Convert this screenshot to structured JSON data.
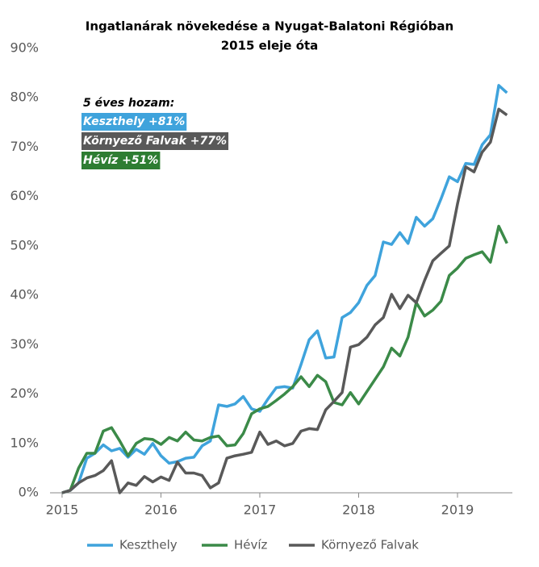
{
  "chart_data": {
    "type": "line",
    "title": "Ingatlanárak növekedése a Nyugat-Balatoni Régióban",
    "subtitle": "2015 eleje óta",
    "x": [
      2015,
      2015.083,
      2015.167,
      2015.25,
      2015.333,
      2015.417,
      2015.5,
      2015.583,
      2015.667,
      2015.75,
      2015.833,
      2015.917,
      2016,
      2016.083,
      2016.167,
      2016.25,
      2016.333,
      2016.417,
      2016.5,
      2016.583,
      2016.667,
      2016.75,
      2016.833,
      2016.917,
      2017,
      2017.083,
      2017.167,
      2017.25,
      2017.333,
      2017.417,
      2017.5,
      2017.583,
      2017.667,
      2017.75,
      2017.833,
      2017.917,
      2018,
      2018.083,
      2018.167,
      2018.25,
      2018.333,
      2018.417,
      2018.5,
      2018.583,
      2018.667,
      2018.75,
      2018.833,
      2018.917,
      2019,
      2019.083,
      2019.167,
      2019.25,
      2019.333,
      2019.417,
      2019.5
    ],
    "series": [
      {
        "name": "Keszthely",
        "color": "#3fa3dc",
        "values": [
          0,
          0.5,
          2,
          7,
          8,
          9.7,
          8.5,
          9,
          7.2,
          8.8,
          7.8,
          10,
          7.5,
          6,
          6.3,
          7,
          7.2,
          9.5,
          10.5,
          17.8,
          17.5,
          18,
          19.5,
          17,
          16.5,
          19,
          21.3,
          21.5,
          21.2,
          26,
          31,
          32.8,
          27.3,
          27.5,
          35.5,
          36.5,
          38.5,
          42,
          44,
          50.8,
          50.3,
          52.7,
          50.5,
          55.8,
          54,
          55.5,
          59.5,
          64,
          63,
          66.7,
          66.5,
          70.5,
          72.5,
          82.5,
          81
        ]
      },
      {
        "name": "Hévíz",
        "color": "#3b8a48",
        "values": [
          0,
          0.5,
          5,
          8,
          8,
          12.5,
          13.2,
          10.5,
          7.5,
          10,
          11,
          10.8,
          9.8,
          11.2,
          10.5,
          12.3,
          10.7,
          10.5,
          11.2,
          11.5,
          9.5,
          9.7,
          12,
          16,
          17,
          17.5,
          18.7,
          20,
          21.5,
          23.5,
          21.5,
          23.8,
          22.5,
          18.3,
          17.8,
          20.3,
          18,
          20.5,
          23,
          25.5,
          29.3,
          27.7,
          31.5,
          38.5,
          35.8,
          37,
          38.8,
          44,
          45.5,
          47.5,
          48.2,
          48.8,
          46.7,
          54,
          50.5
        ]
      },
      {
        "name": "Környező Falvak",
        "color": "#595959",
        "values": [
          0,
          0.5,
          2,
          3,
          3.5,
          4.5,
          6.5,
          0,
          2,
          1.5,
          3.3,
          2.2,
          3.2,
          2.5,
          6.2,
          4,
          4,
          3.5,
          1,
          2,
          7,
          7.5,
          7.8,
          8.2,
          12.3,
          9.8,
          10.5,
          9.5,
          10,
          12.5,
          13,
          12.8,
          16.8,
          18.5,
          20.3,
          29.5,
          30,
          31.5,
          34,
          35.5,
          40.2,
          37.3,
          40,
          38.5,
          43,
          47,
          48.5,
          50,
          58.5,
          66,
          65,
          69,
          71,
          77.7,
          76.5
        ]
      }
    ],
    "xlim": [
      2014.878,
      2019.555
    ],
    "xticks": [
      2015,
      2016,
      2017,
      2018,
      2019
    ],
    "ylim": [
      0,
      90
    ],
    "yticks": [
      {
        "value": 0,
        "label": "0%"
      },
      {
        "value": 10,
        "label": "10%"
      },
      {
        "value": 20,
        "label": "20%"
      },
      {
        "value": 30,
        "label": "30%"
      },
      {
        "value": 40,
        "label": "40%"
      },
      {
        "value": 50,
        "label": "50%"
      },
      {
        "value": 60,
        "label": "60%"
      },
      {
        "value": 70,
        "label": "70%"
      },
      {
        "value": 80,
        "label": "80%"
      },
      {
        "value": 90,
        "label": "90%"
      }
    ],
    "grid": false,
    "legend": "bottom",
    "annotation": {
      "heading": "5 éves hozam:",
      "items": [
        {
          "text": "Keszthely +81%",
          "color": "#3fa3dc"
        },
        {
          "text": "Környező Falvak +77%",
          "color": "#595959"
        },
        {
          "text": "Hévíz +51%",
          "color": "#2e7d32"
        }
      ]
    }
  }
}
